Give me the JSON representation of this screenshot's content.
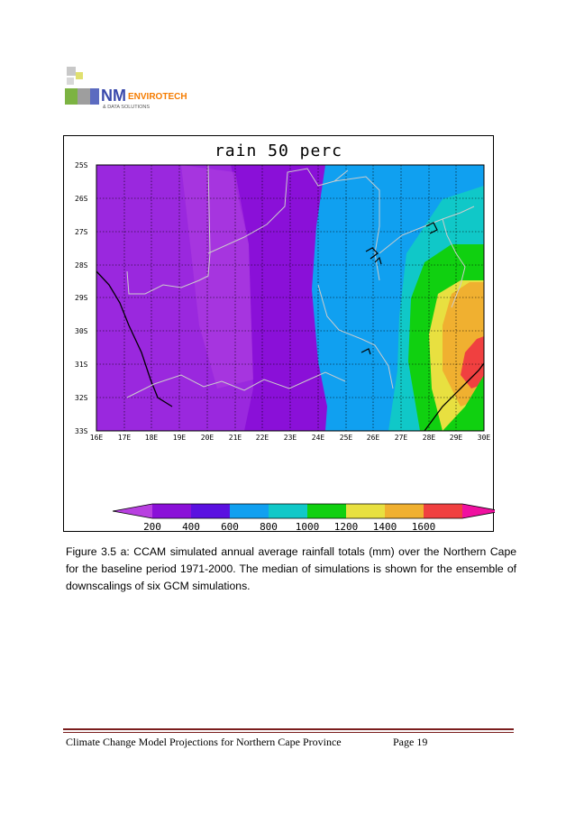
{
  "logo": {
    "brand_main": "NM",
    "brand_envirotech": "ENVIROTECH",
    "brand_sub": "& DATA SOLUTIONS"
  },
  "figure": {
    "title": "rain 50 perc",
    "lat_labels": [
      "25S",
      "26S",
      "27S",
      "28S",
      "29S",
      "30S",
      "31S",
      "32S",
      "33S"
    ],
    "lon_labels": [
      "16E",
      "17E",
      "18E",
      "19E",
      "20E",
      "21E",
      "22E",
      "23E",
      "24E",
      "25E",
      "26E",
      "27E",
      "28E",
      "29E",
      "30E"
    ],
    "colorbar": {
      "labels": [
        "200",
        "400",
        "600",
        "800",
        "1000",
        "1200",
        "1400",
        "1600"
      ],
      "colors": [
        "#b840e0",
        "#8a10d8",
        "#5a10e0",
        "#10a0f0",
        "#10c8c8",
        "#10d010",
        "#e8e040",
        "#f0b030",
        "#f04040",
        "#f010a0"
      ]
    }
  },
  "caption": {
    "text": "Figure 3.5 a: CCAM simulated annual average rainfall totals (mm) over the Northern Cape for the baseline period 1971-2000. The median of simulations is shown for the ensemble of downscalings of six GCM simulations."
  },
  "footer": {
    "left": "Climate Change Model Projections for Northern Cape Province",
    "right": "Page 19"
  }
}
